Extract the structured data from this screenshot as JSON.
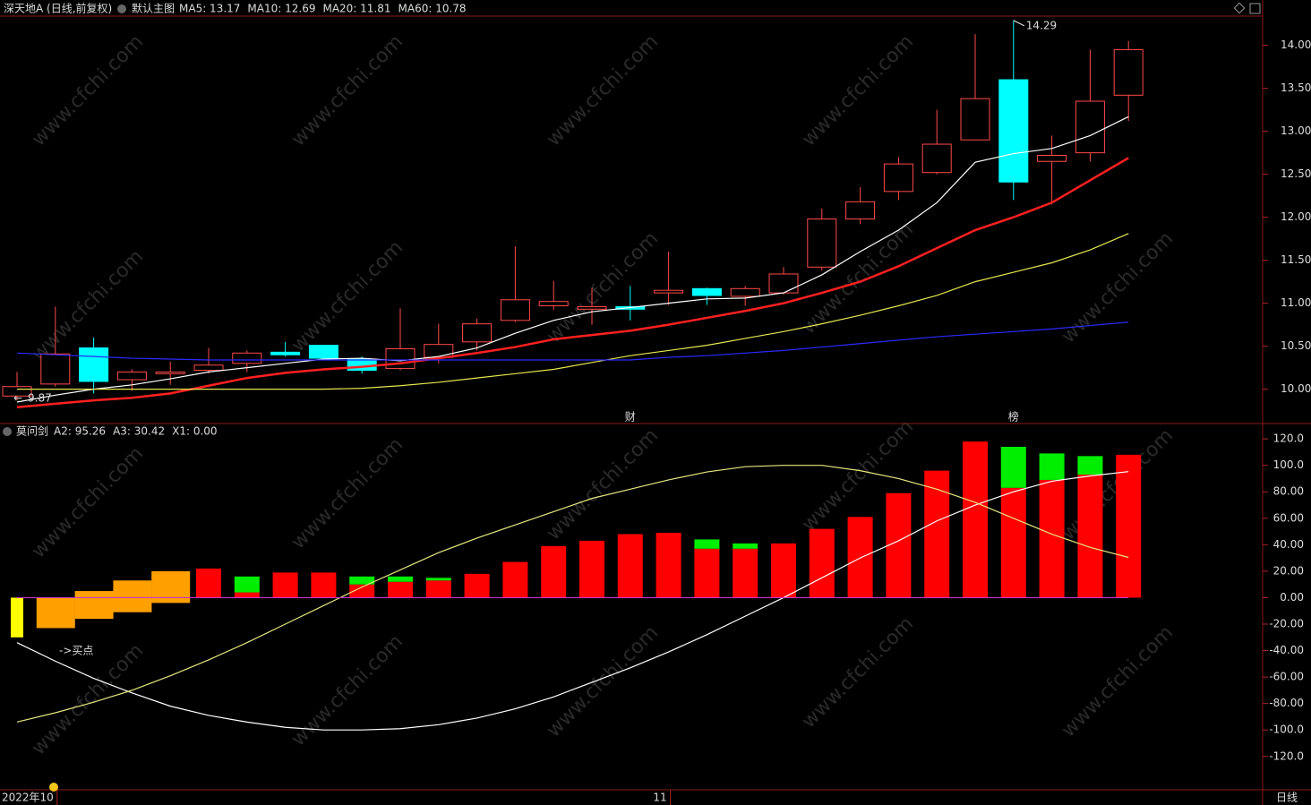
{
  "chart_data": [
    {
      "type": "candlestick",
      "title": "深天地A (日线,前复权)",
      "subtitle": "默认主图",
      "categories": [
        null,
        "2022年10",
        null,
        null,
        null,
        null,
        null,
        null,
        null,
        null,
        null,
        null,
        null,
        null,
        null,
        null,
        null,
        "11",
        null,
        null,
        null,
        null,
        null,
        null,
        null,
        null,
        null,
        null,
        null,
        null
      ],
      "events": [
        null,
        null,
        null,
        null,
        null,
        null,
        null,
        null,
        null,
        null,
        null,
        null,
        null,
        null,
        null,
        null,
        "财",
        null,
        null,
        null,
        null,
        null,
        null,
        null,
        null,
        null,
        "榜",
        null,
        null,
        null
      ],
      "open": [
        9.92,
        10.06,
        10.48,
        10.11,
        10.18,
        10.22,
        10.3,
        10.43,
        10.51,
        10.35,
        10.24,
        10.37,
        10.55,
        10.8,
        10.97,
        10.93,
        10.96,
        11.12,
        11.17,
        11.08,
        11.12,
        11.42,
        11.98,
        12.3,
        12.52,
        12.9,
        13.6,
        12.65,
        12.75,
        13.42
      ],
      "high": [
        10.2,
        10.96,
        10.6,
        10.23,
        10.32,
        10.48,
        10.45,
        10.55,
        10.51,
        10.38,
        10.94,
        10.76,
        10.82,
        11.66,
        11.26,
        11.18,
        11.2,
        11.6,
        11.18,
        11.2,
        11.42,
        12.1,
        12.35,
        12.7,
        13.25,
        14.13,
        14.29,
        12.95,
        13.95,
        14.05
      ],
      "low": [
        9.87,
        10.03,
        9.95,
        9.98,
        10.05,
        10.18,
        10.2,
        10.38,
        10.34,
        10.18,
        10.22,
        10.3,
        10.45,
        10.78,
        10.92,
        10.75,
        10.8,
        10.98,
        10.98,
        10.97,
        11.1,
        11.38,
        11.92,
        12.2,
        12.5,
        12.9,
        12.2,
        12.15,
        12.65,
        13.12
      ],
      "close": [
        10.03,
        10.41,
        10.09,
        10.2,
        10.2,
        10.28,
        10.42,
        10.4,
        10.36,
        10.22,
        10.47,
        10.52,
        10.76,
        11.04,
        11.02,
        10.96,
        10.93,
        11.15,
        11.09,
        11.17,
        11.34,
        11.98,
        12.18,
        12.62,
        12.85,
        13.38,
        12.41,
        12.72,
        13.35,
        13.95
      ],
      "up_color": "#ff4a4a",
      "down_color": "#00ffff",
      "max_label": 14.29,
      "min_label": 9.87,
      "min_arrow": "←",
      "series": [
        {
          "name": "MA5: 13.17",
          "color": "#ffffff",
          "values": [
            9.85,
            9.93,
            10.0,
            10.05,
            10.12,
            10.2,
            10.25,
            10.3,
            10.35,
            10.36,
            10.33,
            10.38,
            10.48,
            10.65,
            10.8,
            10.9,
            10.95,
            11.0,
            11.05,
            11.06,
            11.12,
            11.33,
            11.6,
            11.85,
            12.17,
            12.64,
            12.74,
            12.8,
            12.95,
            13.17
          ]
        },
        {
          "name": "MA10: 12.69",
          "color": "#ff2020",
          "values": [
            9.79,
            9.83,
            9.87,
            9.9,
            9.95,
            10.04,
            10.13,
            10.19,
            10.23,
            10.26,
            10.3,
            10.36,
            10.42,
            10.49,
            10.58,
            10.63,
            10.68,
            10.75,
            10.83,
            10.91,
            11.0,
            11.12,
            11.25,
            11.43,
            11.64,
            11.85,
            12.0,
            12.17,
            12.43,
            12.69
          ]
        },
        {
          "name": "MA20: 11.81",
          "color": "#e6e650",
          "values": [
            10.0,
            10.0,
            10.0,
            10.0,
            10.0,
            10.0,
            10.0,
            10.0,
            10.0,
            10.01,
            10.04,
            10.08,
            10.13,
            10.18,
            10.23,
            10.31,
            10.39,
            10.45,
            10.51,
            10.59,
            10.67,
            10.76,
            10.86,
            10.97,
            11.09,
            11.25,
            11.36,
            11.47,
            11.62,
            11.81
          ]
        },
        {
          "name": "MA60: 10.78",
          "color": "#2a2aff",
          "values": [
            10.42,
            10.4,
            10.38,
            10.36,
            10.35,
            10.34,
            10.34,
            10.34,
            10.34,
            10.34,
            10.34,
            10.34,
            10.34,
            10.34,
            10.34,
            10.34,
            10.34,
            10.37,
            10.39,
            10.42,
            10.45,
            10.49,
            10.53,
            10.57,
            10.61,
            10.64,
            10.67,
            10.7,
            10.74,
            10.78
          ]
        }
      ],
      "ylim": [
        9.6,
        14.34
      ],
      "yticks": [
        {
          "value": 10,
          "label": "10.00"
        },
        {
          "value": 10.5,
          "label": "10.50"
        },
        {
          "value": 11,
          "label": "11.00"
        },
        {
          "value": 11.5,
          "label": "11.50"
        },
        {
          "value": 12,
          "label": "12.00"
        },
        {
          "value": 12.5,
          "label": "12.50"
        },
        {
          "value": 13,
          "label": "13.00"
        },
        {
          "value": 13.5,
          "label": "13.50"
        },
        {
          "value": 14,
          "label": "14.00"
        }
      ],
      "period": "日线",
      "watermark": "www.cfchi.com"
    },
    {
      "type": "combo",
      "title": "莫问剑",
      "annotation": "->买点",
      "series": [
        {
          "name": "A2: 95.26",
          "color": "#ffffff",
          "values": [
            -34,
            -48,
            -61,
            -72,
            -82,
            -89,
            -94,
            -98,
            -100,
            -100,
            -99,
            -96,
            -91,
            -84,
            -75,
            -64,
            -53,
            -41,
            -28,
            -14,
            0,
            15,
            30,
            43,
            58,
            70,
            80,
            88,
            92,
            95.26
          ]
        },
        {
          "name": "A3: 30.42",
          "color": "#e6e680",
          "values": [
            -94,
            -87,
            -79,
            -70,
            -59,
            -47,
            -34,
            -20,
            -6,
            8,
            21,
            34,
            45,
            55,
            65,
            75,
            82,
            89,
            95,
            99,
            100,
            100,
            96,
            90,
            82,
            72,
            60,
            48,
            38,
            30.42
          ]
        },
        {
          "name": "X1: 0.00",
          "color": "#cc33cc",
          "values": [
            0,
            0,
            0,
            0,
            0,
            0,
            0,
            0,
            0,
            0,
            0,
            0,
            0,
            0,
            0,
            0,
            0,
            0,
            0,
            0,
            0,
            0,
            0,
            0,
            0,
            0,
            0,
            0,
            0,
            0
          ]
        }
      ],
      "bars": [
        {
          "color": "#ff0000",
          "values": [
            null,
            null,
            null,
            null,
            null,
            22,
            4,
            19,
            19,
            10,
            12,
            13,
            18,
            27,
            39,
            43,
            48,
            49,
            37,
            37,
            41,
            52,
            61,
            79,
            96,
            118,
            83,
            89,
            93,
            108
          ]
        },
        {
          "color": "#00ee00",
          "values": [
            null,
            null,
            null,
            null,
            null,
            null,
            12,
            null,
            null,
            6,
            4,
            2,
            null,
            null,
            null,
            null,
            null,
            null,
            7,
            4,
            null,
            null,
            null,
            null,
            null,
            null,
            31,
            20,
            14,
            null
          ]
        },
        {
          "color": "#ffff00",
          "values": [
            -30,
            null,
            null,
            null,
            null,
            null,
            null,
            null,
            null,
            null,
            null,
            null,
            null,
            null,
            null,
            null,
            null,
            null,
            null,
            null,
            null,
            null,
            null,
            null,
            null,
            null,
            null,
            null,
            null,
            null
          ]
        }
      ],
      "ranges": {
        "color": "#ffa000",
        "low": [
          null,
          -23,
          -16,
          -11,
          -4
        ],
        "high": [
          null,
          0,
          5,
          13,
          20
        ]
      },
      "ylim": [
        -145.2,
        131.6
      ],
      "yticks": [
        {
          "value": -120,
          "label": "-120.0"
        },
        {
          "value": -100,
          "label": "-100.0"
        },
        {
          "value": -80,
          "label": "-80.00"
        },
        {
          "value": -60,
          "label": "-60.00"
        },
        {
          "value": -40,
          "label": "-40.00"
        },
        {
          "value": -20,
          "label": "-20.00"
        },
        {
          "value": 0,
          "label": "0.00"
        },
        {
          "value": 20,
          "label": "20.00"
        },
        {
          "value": 40,
          "label": "40.00"
        },
        {
          "value": 60,
          "label": "60.00"
        },
        {
          "value": 80,
          "label": "80.00"
        },
        {
          "value": 100,
          "label": "100.0"
        },
        {
          "value": 120,
          "label": "120.0"
        }
      ]
    }
  ]
}
